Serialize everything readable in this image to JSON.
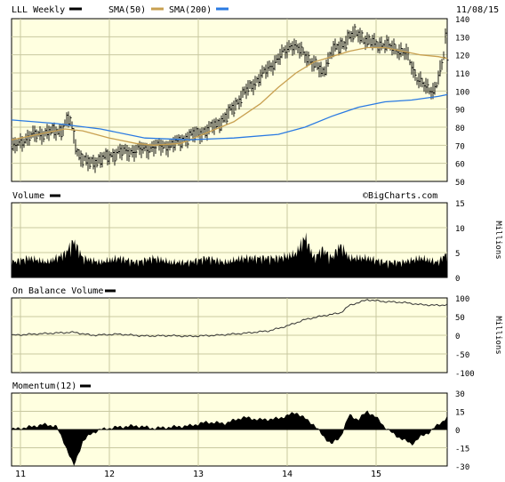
{
  "header": {
    "symbol_label": "LLL Weekly",
    "sma50_label": "SMA(50)",
    "sma200_label": "SMA(200)",
    "date": "11/08/15",
    "watermark": "©BigCharts.com"
  },
  "colors": {
    "panel_bg": "#ffffe0",
    "grid": "#c8c8a0",
    "price": "#000000",
    "sma50": "#c8a050",
    "sma200": "#2a7ae2"
  },
  "chart_data": [
    {
      "type": "line",
      "panel": "price",
      "ylim": [
        50,
        140
      ],
      "yticks": [
        50,
        60,
        70,
        80,
        90,
        100,
        110,
        120,
        130,
        140
      ],
      "x_tick_labels": [
        "11",
        "12",
        "13",
        "14",
        "15"
      ],
      "x_tick_positions": [
        0.1,
        1.1,
        2.1,
        3.1,
        4.1
      ],
      "xlim": [
        0,
        4.9
      ],
      "series": [
        {
          "name": "LLL Weekly",
          "x": [
            0.0,
            0.2,
            0.4,
            0.55,
            0.65,
            0.75,
            0.85,
            1.0,
            1.2,
            1.4,
            1.6,
            1.8,
            2.0,
            2.2,
            2.4,
            2.6,
            2.8,
            3.0,
            3.15,
            3.3,
            3.5,
            3.6,
            3.7,
            3.8,
            3.9,
            4.0,
            4.15,
            4.3,
            4.45,
            4.55,
            4.65,
            4.75,
            4.85,
            4.88,
            4.9
          ],
          "y": [
            68,
            75,
            77,
            78,
            85,
            65,
            60,
            62,
            66,
            67,
            69,
            70,
            75,
            78,
            85,
            98,
            108,
            118,
            126,
            120,
            110,
            122,
            125,
            130,
            132,
            127,
            126,
            124,
            120,
            108,
            102,
            100,
            115,
            130,
            118
          ]
        },
        {
          "name": "SMA(50)",
          "x": [
            0.0,
            0.3,
            0.6,
            0.8,
            1.1,
            1.4,
            1.6,
            1.9,
            2.2,
            2.5,
            2.8,
            3.0,
            3.2,
            3.4,
            3.6,
            3.8,
            4.0,
            4.2,
            4.4,
            4.6,
            4.8,
            4.9
          ],
          "y": [
            73,
            76,
            79,
            78,
            74,
            71,
            70,
            71,
            77,
            83,
            93,
            102,
            110,
            116,
            119,
            122,
            124,
            124,
            122,
            120,
            119,
            118
          ]
        },
        {
          "name": "SMA(200)",
          "x": [
            0.0,
            0.5,
            1.0,
            1.5,
            2.0,
            2.5,
            3.0,
            3.3,
            3.6,
            3.9,
            4.2,
            4.5,
            4.8,
            4.9
          ],
          "y": [
            84,
            82,
            79,
            74,
            73,
            74,
            76,
            80,
            86,
            91,
            94,
            95,
            97,
            98
          ]
        }
      ]
    },
    {
      "type": "bar",
      "panel": "volume",
      "title": "Volume",
      "ylabel": "Millions",
      "ylim": [
        0,
        15
      ],
      "yticks": [
        0,
        5,
        10,
        15
      ],
      "x": [
        0.0,
        0.2,
        0.4,
        0.6,
        0.7,
        0.8,
        1.0,
        1.2,
        1.4,
        1.6,
        1.8,
        2.0,
        2.2,
        2.4,
        2.6,
        2.8,
        3.0,
        3.2,
        3.3,
        3.4,
        3.5,
        3.6,
        3.7,
        3.8,
        4.0,
        4.2,
        4.4,
        4.6,
        4.8,
        4.88,
        4.9
      ],
      "values": [
        3,
        4,
        3,
        5,
        8,
        4,
        3,
        4,
        3,
        4,
        3,
        3,
        4,
        3,
        4,
        4,
        4,
        5,
        9,
        4,
        6,
        4,
        7,
        4,
        4,
        3,
        3,
        4,
        3,
        5,
        3
      ]
    },
    {
      "type": "line",
      "panel": "obv",
      "title": "On Balance Volume",
      "ylabel": "Millions",
      "ylim": [
        -100,
        100
      ],
      "yticks": [
        -100,
        -50,
        0,
        50,
        100
      ],
      "series": [
        {
          "name": "On Balance Volume",
          "x": [
            0.0,
            0.4,
            0.7,
            0.9,
            1.2,
            1.5,
            1.8,
            2.0,
            2.3,
            2.6,
            2.9,
            3.1,
            3.3,
            3.5,
            3.7,
            3.8,
            4.0,
            4.2,
            4.4,
            4.6,
            4.8,
            4.9
          ],
          "y": [
            0,
            5,
            8,
            0,
            3,
            -2,
            -1,
            -3,
            0,
            5,
            12,
            25,
            42,
            52,
            60,
            80,
            95,
            90,
            88,
            82,
            80,
            82
          ]
        }
      ]
    },
    {
      "type": "area",
      "panel": "momentum",
      "title": "Momentum(12)",
      "ylim": [
        -30,
        30
      ],
      "yticks": [
        -30,
        -15,
        0,
        15,
        30
      ],
      "series": [
        {
          "name": "Momentum(12)",
          "x": [
            0.0,
            0.2,
            0.35,
            0.5,
            0.6,
            0.7,
            0.8,
            0.9,
            1.0,
            1.2,
            1.4,
            1.6,
            1.8,
            2.0,
            2.2,
            2.4,
            2.6,
            2.8,
            3.0,
            3.2,
            3.4,
            3.5,
            3.6,
            3.7,
            3.8,
            3.9,
            4.0,
            4.1,
            4.2,
            4.3,
            4.4,
            4.5,
            4.6,
            4.7,
            4.8,
            4.9
          ],
          "y": [
            0,
            2,
            4,
            3,
            -12,
            -30,
            -10,
            -3,
            0,
            2,
            3,
            1,
            2,
            3,
            6,
            5,
            10,
            8,
            9,
            14,
            4,
            -5,
            -12,
            -6,
            12,
            8,
            15,
            10,
            2,
            -4,
            -8,
            -12,
            -6,
            -2,
            4,
            10
          ]
        }
      ]
    }
  ]
}
